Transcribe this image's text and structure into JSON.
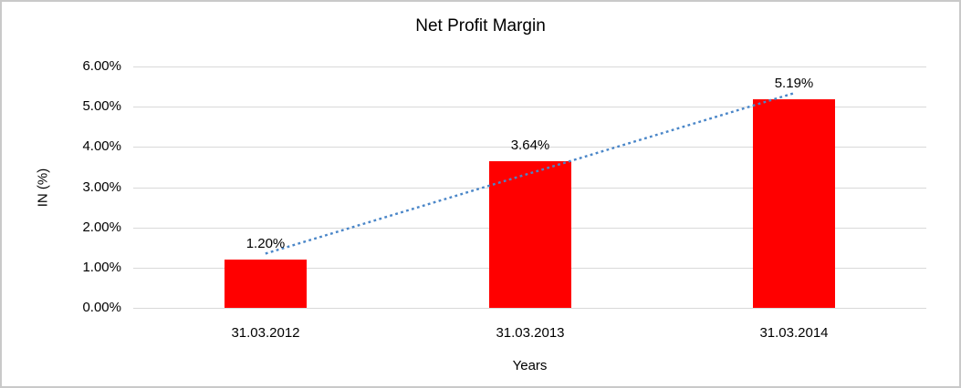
{
  "chart": {
    "title": "Net Profit Margin",
    "colors": {
      "bar": "#ff0000",
      "gridline": "#d9d9d9",
      "trendline": "#4a86c8",
      "text": "#000000",
      "frame_border": "#c9c9c9"
    }
  },
  "chart_data": {
    "type": "bar",
    "title": "Net Profit Margin",
    "xlabel": "Years",
    "ylabel": "IN (%)",
    "categories": [
      "31.03.2012",
      "31.03.2013",
      "31.03.2014"
    ],
    "values": [
      1.2,
      3.64,
      5.19
    ],
    "data_labels": [
      "1.20%",
      "3.64%",
      "5.19%"
    ],
    "y_ticks": [
      "0.00%",
      "1.00%",
      "2.00%",
      "3.00%",
      "4.00%",
      "5.00%",
      "6.00%"
    ],
    "ylim": [
      0,
      6
    ],
    "y_step": 1,
    "grid": true,
    "legend": "none",
    "trendline": {
      "type": "linear",
      "style": "dotted",
      "color": "#4a86c8"
    }
  }
}
